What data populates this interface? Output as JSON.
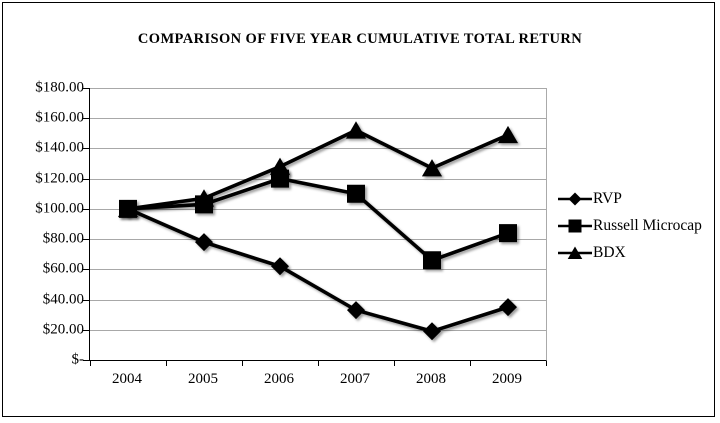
{
  "frame": {
    "background": "#ffffff",
    "border_color": "#000000"
  },
  "chart_data": {
    "type": "line",
    "title": "COMPARISON OF FIVE YEAR CUMULATIVE TOTAL RETURN",
    "categories": [
      "2004",
      "2005",
      "2006",
      "2007",
      "2008",
      "2009"
    ],
    "series": [
      {
        "name": "RVP",
        "marker": "diamond",
        "values": [
          100,
          78,
          62,
          33,
          19,
          35
        ]
      },
      {
        "name": "Russell Microcap",
        "marker": "square",
        "values": [
          100,
          103,
          120,
          110,
          66,
          84
        ]
      },
      {
        "name": "BDX",
        "marker": "triangle",
        "values": [
          100,
          107,
          128,
          152,
          127,
          149
        ]
      }
    ],
    "y_axis": {
      "min": 0,
      "max": 180,
      "step": 20,
      "tick_labels": [
        "$180.00",
        "$160.00",
        "$140.00",
        "$120.00",
        "$100.00",
        "$80.00",
        "$60.00",
        "$40.00",
        "$20.00",
        "$-"
      ]
    },
    "xlabel": "",
    "ylabel": "",
    "grid": true,
    "legend_position": "right",
    "line_color": "#000000",
    "gridline_color": "#a8a8a8"
  }
}
